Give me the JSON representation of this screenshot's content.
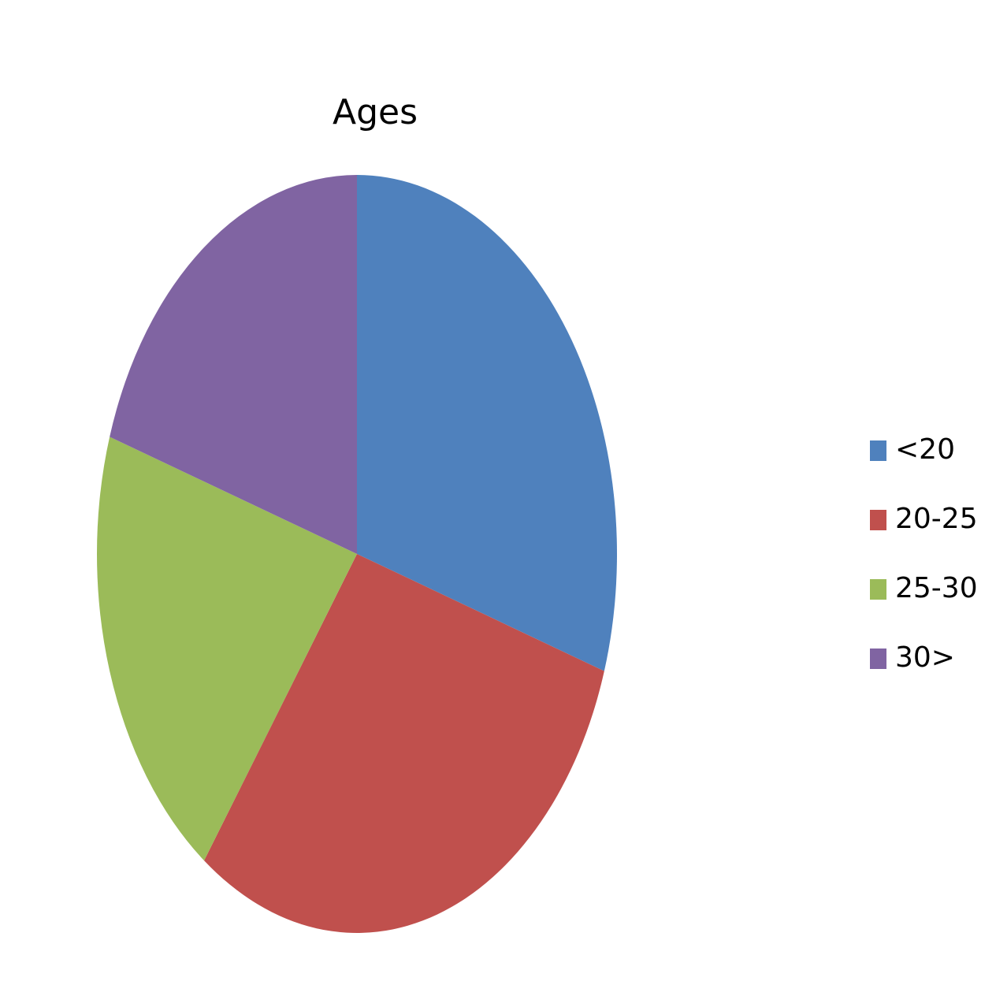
{
  "chart_data": {
    "type": "pie",
    "title": "Ages",
    "categories": [
      "<20",
      "20-25",
      "25-30",
      "30>"
    ],
    "values": [
      30,
      30,
      20,
      20
    ],
    "colors": [
      "#4f81bd",
      "#c0504d",
      "#9bbb59",
      "#8064a2"
    ],
    "legend": "right"
  }
}
